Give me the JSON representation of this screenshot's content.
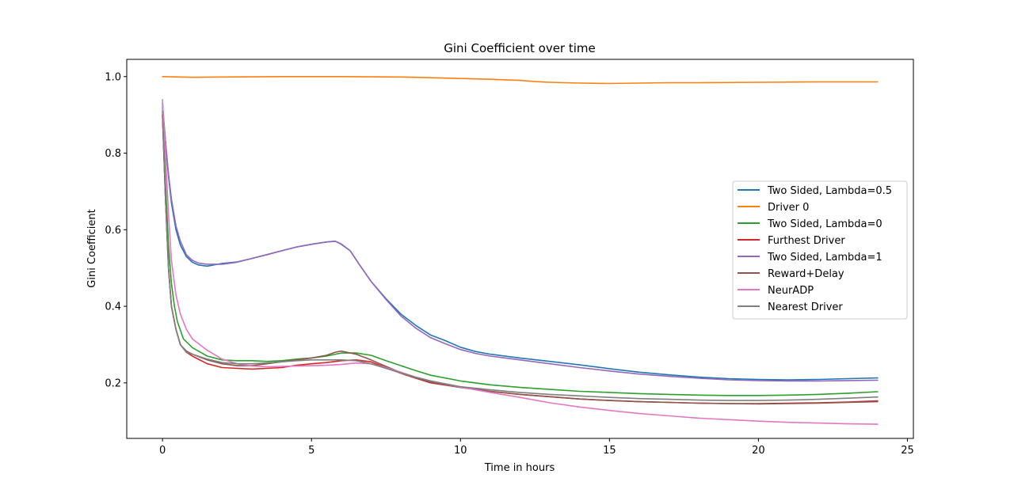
{
  "chart_data": {
    "type": "line",
    "title": "Gini Coefficient over time",
    "xlabel": "Time in hours",
    "ylabel": "Gini Coefficient",
    "xlim": [
      -1.2,
      25.2
    ],
    "ylim": [
      0.055,
      1.045
    ],
    "xticks": [
      0,
      5,
      10,
      15,
      20,
      25
    ],
    "yticks": [
      0.2,
      0.4,
      0.6,
      0.8,
      1.0
    ],
    "xtick_labels": [
      "0",
      "5",
      "10",
      "15",
      "20",
      "25"
    ],
    "ytick_labels": [
      "0.2",
      "0.4",
      "0.6",
      "0.8",
      "1.0"
    ],
    "grid": false,
    "legend_position": "center-right",
    "series": [
      {
        "name": "Two Sided, Lambda=0.5",
        "color": "#1f77b4",
        "points": [
          [
            0,
            0.93
          ],
          [
            0.1,
            0.83
          ],
          [
            0.2,
            0.74
          ],
          [
            0.3,
            0.67
          ],
          [
            0.45,
            0.6
          ],
          [
            0.6,
            0.56
          ],
          [
            0.8,
            0.53
          ],
          [
            1.0,
            0.515
          ],
          [
            1.2,
            0.508
          ],
          [
            1.5,
            0.505
          ],
          [
            2.0,
            0.512
          ],
          [
            2.5,
            0.516
          ],
          [
            3.0,
            0.525
          ],
          [
            3.5,
            0.535
          ],
          [
            4.0,
            0.545
          ],
          [
            4.5,
            0.555
          ],
          [
            5.0,
            0.562
          ],
          [
            5.5,
            0.568
          ],
          [
            5.8,
            0.57
          ],
          [
            6.0,
            0.562
          ],
          [
            6.3,
            0.545
          ],
          [
            6.6,
            0.51
          ],
          [
            7.0,
            0.465
          ],
          [
            7.5,
            0.42
          ],
          [
            8.0,
            0.38
          ],
          [
            8.5,
            0.35
          ],
          [
            9.0,
            0.325
          ],
          [
            9.5,
            0.31
          ],
          [
            10.0,
            0.293
          ],
          [
            10.5,
            0.282
          ],
          [
            11.0,
            0.275
          ],
          [
            12.0,
            0.265
          ],
          [
            13.0,
            0.256
          ],
          [
            14.0,
            0.247
          ],
          [
            15.0,
            0.237
          ],
          [
            16.0,
            0.228
          ],
          [
            17.0,
            0.221
          ],
          [
            18.0,
            0.215
          ],
          [
            19.0,
            0.211
          ],
          [
            20.0,
            0.209
          ],
          [
            21.0,
            0.208
          ],
          [
            22.0,
            0.209
          ],
          [
            23.0,
            0.211
          ],
          [
            24.0,
            0.213
          ]
        ]
      },
      {
        "name": "Driver 0",
        "color": "#ff7f0e",
        "points": [
          [
            0,
            1.0
          ],
          [
            1,
            0.998
          ],
          [
            2,
            0.999
          ],
          [
            4,
            1.0
          ],
          [
            6,
            1.0
          ],
          [
            8,
            0.999
          ],
          [
            9,
            0.997
          ],
          [
            10,
            0.995
          ],
          [
            11,
            0.993
          ],
          [
            12,
            0.99
          ],
          [
            12.5,
            0.987
          ],
          [
            13,
            0.985
          ],
          [
            14,
            0.983
          ],
          [
            15,
            0.982
          ],
          [
            16,
            0.983
          ],
          [
            17,
            0.984
          ],
          [
            18,
            0.984
          ],
          [
            20,
            0.985
          ],
          [
            22,
            0.986
          ],
          [
            24,
            0.986
          ]
        ]
      },
      {
        "name": "Two Sided, Lambda=0",
        "color": "#2ca02c",
        "points": [
          [
            0,
            0.91
          ],
          [
            0.1,
            0.72
          ],
          [
            0.2,
            0.56
          ],
          [
            0.3,
            0.46
          ],
          [
            0.4,
            0.4
          ],
          [
            0.5,
            0.36
          ],
          [
            0.7,
            0.315
          ],
          [
            1.0,
            0.292
          ],
          [
            1.5,
            0.27
          ],
          [
            2.0,
            0.26
          ],
          [
            2.5,
            0.258
          ],
          [
            3.0,
            0.258
          ],
          [
            3.5,
            0.256
          ],
          [
            4.0,
            0.258
          ],
          [
            4.5,
            0.262
          ],
          [
            5.0,
            0.265
          ],
          [
            5.5,
            0.27
          ],
          [
            6.0,
            0.278
          ],
          [
            6.5,
            0.278
          ],
          [
            7.0,
            0.272
          ],
          [
            7.5,
            0.258
          ],
          [
            8.0,
            0.245
          ],
          [
            8.5,
            0.232
          ],
          [
            9.0,
            0.22
          ],
          [
            10.0,
            0.205
          ],
          [
            11.0,
            0.195
          ],
          [
            12.0,
            0.188
          ],
          [
            13.0,
            0.183
          ],
          [
            14.0,
            0.178
          ],
          [
            15.0,
            0.175
          ],
          [
            16.0,
            0.172
          ],
          [
            17.0,
            0.17
          ],
          [
            18.0,
            0.168
          ],
          [
            19.0,
            0.167
          ],
          [
            20.0,
            0.167
          ],
          [
            21.0,
            0.168
          ],
          [
            22.0,
            0.17
          ],
          [
            23.0,
            0.173
          ],
          [
            24.0,
            0.177
          ]
        ]
      },
      {
        "name": "Furthest Driver",
        "color": "#d62728",
        "points": [
          [
            0,
            0.9
          ],
          [
            0.1,
            0.68
          ],
          [
            0.2,
            0.5
          ],
          [
            0.3,
            0.4
          ],
          [
            0.45,
            0.34
          ],
          [
            0.6,
            0.3
          ],
          [
            0.8,
            0.28
          ],
          [
            1.0,
            0.27
          ],
          [
            1.5,
            0.25
          ],
          [
            2.0,
            0.24
          ],
          [
            2.5,
            0.238
          ],
          [
            3.0,
            0.236
          ],
          [
            3.5,
            0.238
          ],
          [
            4.0,
            0.24
          ],
          [
            4.5,
            0.246
          ],
          [
            5.0,
            0.25
          ],
          [
            5.5,
            0.253
          ],
          [
            6.0,
            0.258
          ],
          [
            6.5,
            0.26
          ],
          [
            7.0,
            0.255
          ],
          [
            7.5,
            0.24
          ],
          [
            8.0,
            0.225
          ],
          [
            8.5,
            0.212
          ],
          [
            9.0,
            0.2
          ],
          [
            10.0,
            0.188
          ],
          [
            11.0,
            0.178
          ],
          [
            12.0,
            0.17
          ],
          [
            13.0,
            0.164
          ],
          [
            14.0,
            0.158
          ],
          [
            15.0,
            0.154
          ],
          [
            16.0,
            0.151
          ],
          [
            17.0,
            0.149
          ],
          [
            18.0,
            0.147
          ],
          [
            19.0,
            0.146
          ],
          [
            20.0,
            0.146
          ],
          [
            21.0,
            0.147
          ],
          [
            22.0,
            0.148
          ],
          [
            23.0,
            0.15
          ],
          [
            24.0,
            0.153
          ]
        ]
      },
      {
        "name": "Two Sided, Lambda=1",
        "color": "#9467bd",
        "points": [
          [
            0,
            0.92
          ],
          [
            0.1,
            0.83
          ],
          [
            0.2,
            0.745
          ],
          [
            0.3,
            0.68
          ],
          [
            0.45,
            0.61
          ],
          [
            0.6,
            0.57
          ],
          [
            0.8,
            0.535
          ],
          [
            1.0,
            0.52
          ],
          [
            1.2,
            0.513
          ],
          [
            1.5,
            0.51
          ],
          [
            2.0,
            0.51
          ],
          [
            2.5,
            0.515
          ],
          [
            3.0,
            0.525
          ],
          [
            3.5,
            0.535
          ],
          [
            4.0,
            0.545
          ],
          [
            4.5,
            0.555
          ],
          [
            5.0,
            0.562
          ],
          [
            5.5,
            0.568
          ],
          [
            5.8,
            0.57
          ],
          [
            6.0,
            0.563
          ],
          [
            6.3,
            0.545
          ],
          [
            6.6,
            0.51
          ],
          [
            7.0,
            0.465
          ],
          [
            7.5,
            0.418
          ],
          [
            8.0,
            0.375
          ],
          [
            8.5,
            0.343
          ],
          [
            9.0,
            0.318
          ],
          [
            9.5,
            0.302
          ],
          [
            10.0,
            0.287
          ],
          [
            10.5,
            0.277
          ],
          [
            11.0,
            0.27
          ],
          [
            12.0,
            0.26
          ],
          [
            13.0,
            0.25
          ],
          [
            14.0,
            0.24
          ],
          [
            15.0,
            0.231
          ],
          [
            16.0,
            0.223
          ],
          [
            17.0,
            0.217
          ],
          [
            18.0,
            0.212
          ],
          [
            19.0,
            0.208
          ],
          [
            20.0,
            0.206
          ],
          [
            21.0,
            0.205
          ],
          [
            22.0,
            0.205
          ],
          [
            23.0,
            0.206
          ],
          [
            24.0,
            0.207
          ]
        ]
      },
      {
        "name": "Reward+Delay",
        "color": "#8c564b",
        "points": [
          [
            0,
            0.9
          ],
          [
            0.1,
            0.68
          ],
          [
            0.2,
            0.5
          ],
          [
            0.3,
            0.4
          ],
          [
            0.45,
            0.34
          ],
          [
            0.6,
            0.3
          ],
          [
            0.8,
            0.283
          ],
          [
            1.0,
            0.275
          ],
          [
            1.5,
            0.26
          ],
          [
            2.0,
            0.25
          ],
          [
            2.5,
            0.245
          ],
          [
            3.0,
            0.245
          ],
          [
            3.5,
            0.25
          ],
          [
            4.0,
            0.255
          ],
          [
            4.5,
            0.26
          ],
          [
            5.0,
            0.265
          ],
          [
            5.5,
            0.272
          ],
          [
            5.8,
            0.28
          ],
          [
            6.0,
            0.283
          ],
          [
            6.5,
            0.275
          ],
          [
            7.0,
            0.26
          ],
          [
            7.5,
            0.243
          ],
          [
            8.0,
            0.227
          ],
          [
            8.5,
            0.213
          ],
          [
            9.0,
            0.202
          ],
          [
            10.0,
            0.188
          ],
          [
            11.0,
            0.178
          ],
          [
            12.0,
            0.17
          ],
          [
            13.0,
            0.164
          ],
          [
            14.0,
            0.158
          ],
          [
            15.0,
            0.154
          ],
          [
            16.0,
            0.151
          ],
          [
            17.0,
            0.149
          ],
          [
            18.0,
            0.147
          ],
          [
            19.0,
            0.146
          ],
          [
            20.0,
            0.145
          ],
          [
            21.0,
            0.146
          ],
          [
            22.0,
            0.147
          ],
          [
            23.0,
            0.149
          ],
          [
            24.0,
            0.151
          ]
        ]
      },
      {
        "name": "NeurADP",
        "color": "#e377c2",
        "points": [
          [
            0,
            0.94
          ],
          [
            0.1,
            0.8
          ],
          [
            0.2,
            0.64
          ],
          [
            0.3,
            0.52
          ],
          [
            0.45,
            0.43
          ],
          [
            0.6,
            0.38
          ],
          [
            0.8,
            0.34
          ],
          [
            1.0,
            0.315
          ],
          [
            1.5,
            0.285
          ],
          [
            2.0,
            0.262
          ],
          [
            2.5,
            0.25
          ],
          [
            3.0,
            0.244
          ],
          [
            3.5,
            0.242
          ],
          [
            4.0,
            0.243
          ],
          [
            4.5,
            0.244
          ],
          [
            5.0,
            0.245
          ],
          [
            5.5,
            0.246
          ],
          [
            6.0,
            0.248
          ],
          [
            6.5,
            0.252
          ],
          [
            7.0,
            0.25
          ],
          [
            7.5,
            0.24
          ],
          [
            8.0,
            0.228
          ],
          [
            8.5,
            0.215
          ],
          [
            9.0,
            0.205
          ],
          [
            10.0,
            0.189
          ],
          [
            11.0,
            0.175
          ],
          [
            12.0,
            0.162
          ],
          [
            13.0,
            0.148
          ],
          [
            14.0,
            0.137
          ],
          [
            15.0,
            0.128
          ],
          [
            16.0,
            0.12
          ],
          [
            17.0,
            0.114
          ],
          [
            18.0,
            0.108
          ],
          [
            19.0,
            0.104
          ],
          [
            20.0,
            0.1
          ],
          [
            21.0,
            0.097
          ],
          [
            22.0,
            0.095
          ],
          [
            23.0,
            0.093
          ],
          [
            24.0,
            0.092
          ]
        ]
      },
      {
        "name": "Nearest Driver",
        "color": "#7f7f7f",
        "points": [
          [
            0,
            0.9
          ],
          [
            0.1,
            0.68
          ],
          [
            0.2,
            0.5
          ],
          [
            0.3,
            0.4
          ],
          [
            0.45,
            0.34
          ],
          [
            0.6,
            0.3
          ],
          [
            0.8,
            0.28
          ],
          [
            1.0,
            0.275
          ],
          [
            1.5,
            0.262
          ],
          [
            2.0,
            0.253
          ],
          [
            2.5,
            0.25
          ],
          [
            3.0,
            0.25
          ],
          [
            3.5,
            0.252
          ],
          [
            4.0,
            0.255
          ],
          [
            4.5,
            0.258
          ],
          [
            5.0,
            0.26
          ],
          [
            5.5,
            0.26
          ],
          [
            6.0,
            0.26
          ],
          [
            6.5,
            0.258
          ],
          [
            7.0,
            0.25
          ],
          [
            7.5,
            0.238
          ],
          [
            8.0,
            0.226
          ],
          [
            8.5,
            0.215
          ],
          [
            9.0,
            0.205
          ],
          [
            10.0,
            0.19
          ],
          [
            11.0,
            0.182
          ],
          [
            12.0,
            0.175
          ],
          [
            13.0,
            0.17
          ],
          [
            14.0,
            0.166
          ],
          [
            15.0,
            0.162
          ],
          [
            16.0,
            0.159
          ],
          [
            17.0,
            0.157
          ],
          [
            18.0,
            0.155
          ],
          [
            19.0,
            0.154
          ],
          [
            20.0,
            0.154
          ],
          [
            21.0,
            0.155
          ],
          [
            22.0,
            0.157
          ],
          [
            23.0,
            0.16
          ],
          [
            24.0,
            0.163
          ]
        ]
      }
    ]
  }
}
